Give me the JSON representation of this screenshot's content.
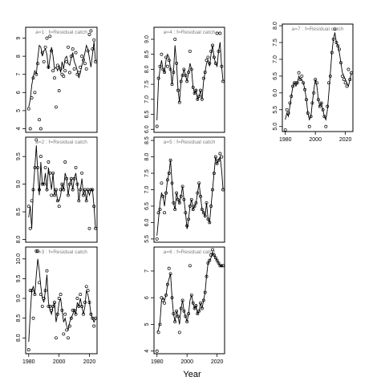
{
  "figure": {
    "xlabel": "Year"
  },
  "chart_data": [
    {
      "type": "line",
      "panel": "a=1",
      "strip": "a=1  :  f=Residual catch",
      "xlim": [
        1978,
        2025
      ],
      "ylim": [
        3.8,
        9.6
      ],
      "yticks": [
        4,
        5,
        6,
        7,
        8,
        9
      ],
      "xticks": [],
      "x": [
        1980,
        1981,
        1982,
        1983,
        1984,
        1985,
        1986,
        1987,
        1988,
        1989,
        1990,
        1991,
        1992,
        1993,
        1994,
        1995,
        1996,
        1997,
        1998,
        1999,
        2000,
        2001,
        2002,
        2003,
        2004,
        2005,
        2006,
        2007,
        2008,
        2009,
        2010,
        2011,
        2012,
        2013,
        2014,
        2015,
        2016,
        2017,
        2018,
        2019,
        2020,
        2021,
        2022,
        2023,
        2024
      ],
      "line": [
        5.2,
        5.6,
        6.4,
        6.9,
        7.2,
        7.0,
        7.9,
        8.6,
        8.5,
        8.0,
        8.3,
        8.4,
        8.1,
        7.3,
        7.9,
        8.5,
        8.0,
        7.3,
        7.4,
        7.2,
        7.5,
        7.1,
        7.7,
        7.3,
        7.9,
        8.0,
        7.6,
        7.5,
        7.9,
        8.2,
        7.7,
        7.5,
        7.2,
        6.8,
        7.1,
        7.5,
        7.8,
        8.2,
        8.6,
        8.4,
        7.9,
        7.4,
        8.1,
        8.8,
        7.7
      ],
      "points": [
        5.1,
        4.0,
        5.7,
        6.8,
        6.0,
        7.0,
        7.6,
        4.5,
        4.0,
        8.2,
        7.7,
        8.5,
        9.0,
        7.4,
        9.1,
        8.3,
        7.2,
        6.8,
        5.2,
        7.5,
        6.1,
        7.3,
        7.0,
        6.9,
        7.2,
        7.7,
        8.5,
        7.1,
        8.0,
        8.4,
        7.3,
        8.2,
        7.0,
        7.1,
        7.4,
        8.0,
        7.8,
        7.6,
        7.3,
        8.3,
        9.2,
        9.4,
        8.4,
        8.9,
        7.7
      ]
    },
    {
      "type": "line",
      "panel": "a=2",
      "strip": "a=2  :  f=Residual catch",
      "xlim": [
        1978,
        2025
      ],
      "ylim": [
        7.95,
        9.85
      ],
      "yticks": [
        8.0,
        8.5,
        9.0,
        9.5
      ],
      "xticks": [],
      "x": [
        1980,
        1981,
        1982,
        1983,
        1984,
        1985,
        1986,
        1987,
        1988,
        1989,
        1990,
        1991,
        1992,
        1993,
        1994,
        1995,
        1996,
        1997,
        1998,
        1999,
        2000,
        2001,
        2002,
        2003,
        2004,
        2005,
        2006,
        2007,
        2008,
        2009,
        2010,
        2011,
        2012,
        2013,
        2014,
        2015,
        2016,
        2017,
        2018,
        2019,
        2020,
        2021,
        2022,
        2023,
        2024
      ],
      "line": [
        8.4,
        8.6,
        8.2,
        8.9,
        9.3,
        9.7,
        9.2,
        8.8,
        9.4,
        9.0,
        9.0,
        9.2,
        8.9,
        9.3,
        9.1,
        8.9,
        9.2,
        8.8,
        8.9,
        8.7,
        8.7,
        8.8,
        9.0,
        8.9,
        9.2,
        9.1,
        8.8,
        9.0,
        9.1,
        8.9,
        9.1,
        9.2,
        9.0,
        8.7,
        8.9,
        9.1,
        8.8,
        8.9,
        8.7,
        8.9,
        8.8,
        8.9,
        8.9,
        8.6,
        8.2
      ],
      "points": [
        8.6,
        8.2,
        8.7,
        8.9,
        9.3,
        9.8,
        9.3,
        8.9,
        9.5,
        9.0,
        9.0,
        9.3,
        8.9,
        9.4,
        9.2,
        8.8,
        9.2,
        8.8,
        8.9,
        8.7,
        8.6,
        8.9,
        9.0,
        8.9,
        9.4,
        9.1,
        8.8,
        9.0,
        9.1,
        8.9,
        9.1,
        9.3,
        9.0,
        8.7,
        8.9,
        9.2,
        8.8,
        8.9,
        8.7,
        8.9,
        8.2,
        8.9,
        8.9,
        8.6,
        8.2
      ]
    },
    {
      "type": "line",
      "panel": "a=3",
      "strip": "a=3  :  f=Residual catch",
      "xlim": [
        1978,
        2025
      ],
      "ylim": [
        7.6,
        10.3
      ],
      "yticks": [
        8.0,
        8.5,
        9.0,
        9.5,
        10.0
      ],
      "xticks": [
        1980,
        2000,
        2020
      ],
      "x": [
        1980,
        1981,
        1982,
        1983,
        1984,
        1985,
        1986,
        1987,
        1988,
        1989,
        1990,
        1991,
        1992,
        1993,
        1994,
        1995,
        1996,
        1997,
        1998,
        1999,
        2000,
        2001,
        2002,
        2003,
        2004,
        2005,
        2006,
        2007,
        2008,
        2009,
        2010,
        2011,
        2012,
        2013,
        2014,
        2015,
        2016,
        2017,
        2018,
        2019,
        2020,
        2021,
        2022,
        2023,
        2024
      ],
      "line": [
        7.9,
        8.6,
        9.2,
        9.3,
        9.1,
        9.6,
        10.0,
        9.7,
        9.3,
        9.0,
        8.9,
        9.2,
        9.6,
        8.9,
        8.7,
        8.6,
        8.8,
        8.9,
        8.4,
        8.6,
        8.9,
        9.0,
        8.7,
        8.4,
        8.5,
        8.3,
        8.2,
        8.4,
        8.5,
        8.6,
        8.7,
        8.6,
        8.9,
        8.8,
        9.0,
        8.8,
        8.6,
        8.8,
        9.2,
        9.1,
        8.9,
        8.6,
        8.5,
        8.4,
        8.5
      ],
      "points": [
        7.7,
        9.2,
        9.2,
        8.5,
        9.1,
        10.2,
        10.2,
        9.4,
        9.1,
        8.8,
        9.0,
        9.2,
        9.7,
        8.8,
        8.8,
        8.7,
        8.8,
        8.9,
        8.0,
        8.6,
        9.0,
        9.1,
        8.7,
        8.1,
        8.6,
        8.2,
        8.0,
        8.3,
        8.5,
        8.7,
        8.7,
        8.6,
        9.0,
        8.8,
        9.1,
        8.8,
        8.6,
        8.9,
        9.3,
        9.2,
        8.9,
        8.6,
        8.5,
        8.3,
        8.5
      ]
    },
    {
      "type": "line",
      "panel": "a=4",
      "strip": "a=4  :  f=Residual catch",
      "xlim": [
        1978,
        2025
      ],
      "ylim": [
        5.9,
        9.4
      ],
      "yticks": [
        6.0,
        6.5,
        7.0,
        7.5,
        8.0,
        8.5,
        9.0
      ],
      "xticks": [],
      "x": [
        1980,
        1981,
        1982,
        1983,
        1984,
        1985,
        1986,
        1987,
        1988,
        1989,
        1990,
        1991,
        1992,
        1993,
        1994,
        1995,
        1996,
        1997,
        1998,
        1999,
        2000,
        2001,
        2002,
        2003,
        2004,
        2005,
        2006,
        2007,
        2008,
        2009,
        2010,
        2011,
        2012,
        2013,
        2014,
        2015,
        2016,
        2017,
        2018,
        2019,
        2020,
        2021,
        2022,
        2023,
        2024
      ],
      "line": [
        6.3,
        7.6,
        8.0,
        8.3,
        8.0,
        7.9,
        8.3,
        8.5,
        8.4,
        8.0,
        7.5,
        7.9,
        8.8,
        8.2,
        7.3,
        6.9,
        7.6,
        7.8,
        8.0,
        7.8,
        7.6,
        7.9,
        8.2,
        8.0,
        7.4,
        7.2,
        7.3,
        7.0,
        7.1,
        7.3,
        7.0,
        7.6,
        7.9,
        8.2,
        8.3,
        8.1,
        8.5,
        8.8,
        8.4,
        8.2,
        8.1,
        8.6,
        8.9,
        8.1,
        7.6
      ],
      "points": [
        6.1,
        7.7,
        8.1,
        8.5,
        8.0,
        7.9,
        8.4,
        8.1,
        8.3,
        8.0,
        7.5,
        7.9,
        9.0,
        8.2,
        7.3,
        6.9,
        7.6,
        7.8,
        8.0,
        7.8,
        7.6,
        7.9,
        8.6,
        8.0,
        7.4,
        7.2,
        7.3,
        7.0,
        7.1,
        7.3,
        7.0,
        7.7,
        7.9,
        8.3,
        8.4,
        8.2,
        8.6,
        8.8,
        8.4,
        8.2,
        9.2,
        8.6,
        9.2,
        8.1,
        7.6
      ]
    },
    {
      "type": "line",
      "panel": "a=5",
      "strip": "a=5  :  f=Residual catch",
      "xlim": [
        1978,
        2025
      ],
      "ylim": [
        5.4,
        8.6
      ],
      "yticks": [
        5.5,
        6.0,
        6.5,
        7.0,
        7.5,
        8.0,
        8.5
      ],
      "xticks": [],
      "x": [
        1980,
        1981,
        1982,
        1983,
        1984,
        1985,
        1986,
        1987,
        1988,
        1989,
        1990,
        1991,
        1992,
        1993,
        1994,
        1995,
        1996,
        1997,
        1998,
        1999,
        2000,
        2001,
        2002,
        2003,
        2004,
        2005,
        2006,
        2007,
        2008,
        2009,
        2010,
        2011,
        2012,
        2013,
        2014,
        2015,
        2016,
        2017,
        2018,
        2019,
        2020,
        2021,
        2022,
        2023,
        2024
      ],
      "line": [
        5.6,
        6.1,
        6.6,
        6.9,
        6.8,
        6.5,
        6.9,
        7.3,
        7.5,
        7.9,
        7.2,
        6.6,
        6.4,
        6.9,
        6.7,
        6.6,
        6.8,
        7.1,
        6.7,
        6.3,
        5.8,
        6.1,
        6.5,
        6.7,
        6.4,
        6.5,
        6.6,
        6.9,
        7.2,
        6.8,
        6.4,
        6.3,
        6.2,
        6.6,
        6.1,
        6.0,
        6.5,
        7.0,
        7.5,
        8.0,
        7.8,
        7.9,
        8.0,
        7.6,
        7.0
      ],
      "points": [
        5.5,
        6.3,
        6.4,
        7.2,
        6.8,
        6.3,
        6.9,
        7.3,
        7.5,
        7.9,
        7.2,
        6.6,
        6.4,
        6.9,
        6.7,
        6.6,
        6.8,
        7.1,
        6.7,
        6.3,
        5.9,
        6.1,
        6.5,
        6.7,
        6.4,
        6.5,
        6.6,
        6.9,
        7.2,
        6.8,
        6.4,
        6.3,
        6.2,
        6.6,
        6.1,
        6.0,
        6.5,
        7.0,
        7.5,
        8.0,
        7.8,
        7.9,
        8.1,
        8.0,
        7.0
      ]
    },
    {
      "type": "line",
      "panel": "a=6",
      "strip": "a=6  :  f=Residual catch",
      "xlim": [
        1978,
        2025
      ],
      "ylim": [
        3.9,
        7.9
      ],
      "yticks": [
        4,
        5,
        6,
        7
      ],
      "xticks": [
        1980,
        2000,
        2020
      ],
      "x": [
        1980,
        1981,
        1982,
        1983,
        1984,
        1985,
        1986,
        1987,
        1988,
        1989,
        1990,
        1991,
        1992,
        1993,
        1994,
        1995,
        1996,
        1997,
        1998,
        1999,
        2000,
        2001,
        2002,
        2003,
        2004,
        2005,
        2006,
        2007,
        2008,
        2009,
        2010,
        2011,
        2012,
        2013,
        2014,
        2015,
        2016,
        2017,
        2018,
        2019,
        2020,
        2021,
        2022,
        2023,
        2024
      ],
      "line": [
        4.7,
        4.8,
        5.1,
        5.9,
        6.0,
        5.9,
        6.1,
        6.5,
        6.7,
        6.9,
        6.0,
        5.4,
        5.1,
        5.5,
        5.3,
        5.0,
        5.6,
        5.9,
        5.5,
        5.3,
        5.1,
        5.4,
        5.9,
        6.1,
        5.8,
        5.6,
        5.7,
        5.4,
        5.5,
        5.8,
        5.6,
        5.9,
        6.2,
        6.8,
        7.3,
        7.4,
        7.5,
        7.7,
        7.6,
        7.5,
        7.4,
        7.3,
        7.2,
        7.2,
        7.2
      ],
      "points": [
        4.0,
        4.7,
        5.0,
        6.0,
        5.9,
        5.8,
        6.1,
        6.5,
        7.1,
        6.9,
        6.0,
        5.4,
        5.1,
        5.5,
        5.3,
        4.7,
        5.6,
        5.9,
        5.5,
        5.3,
        5.1,
        5.4,
        7.2,
        6.1,
        5.8,
        5.6,
        5.7,
        5.4,
        5.5,
        5.8,
        5.6,
        5.9,
        6.2,
        6.8,
        7.3,
        7.4,
        7.6,
        7.8,
        7.6,
        7.5,
        7.4,
        7.3,
        7.2,
        7.2,
        7.2
      ]
    },
    {
      "type": "line",
      "panel": "a=7",
      "strip": "a=7  :  f=Residual catch",
      "xlim": [
        1978,
        2025
      ],
      "ylim": [
        4.85,
        8.05
      ],
      "yticks": [
        5.0,
        5.5,
        6.0,
        6.5,
        7.0,
        7.5,
        8.0
      ],
      "xticks": [
        1980,
        2000,
        2020
      ],
      "x": [
        1980,
        1981,
        1982,
        1983,
        1984,
        1985,
        1986,
        1987,
        1988,
        1989,
        1990,
        1991,
        1992,
        1993,
        1994,
        1995,
        1996,
        1997,
        1998,
        1999,
        2000,
        2001,
        2002,
        2003,
        2004,
        2005,
        2006,
        2007,
        2008,
        2009,
        2010,
        2011,
        2012,
        2013,
        2014,
        2015,
        2016,
        2017,
        2018,
        2019,
        2020,
        2021,
        2022,
        2023,
        2024
      ],
      "line": [
        5.2,
        5.4,
        5.3,
        5.6,
        5.9,
        6.2,
        6.3,
        6.2,
        6.3,
        6.5,
        6.4,
        6.4,
        6.3,
        6.1,
        5.8,
        5.4,
        5.2,
        5.3,
        5.7,
        6.1,
        6.4,
        6.2,
        5.8,
        5.6,
        5.7,
        5.5,
        5.3,
        5.2,
        5.5,
        6.0,
        6.6,
        7.2,
        7.6,
        7.8,
        7.5,
        7.4,
        7.2,
        6.9,
        6.6,
        6.5,
        6.4,
        6.3,
        6.2,
        6.4,
        6.6
      ],
      "points": [
        4.9,
        5.5,
        5.4,
        5.7,
        5.9,
        6.2,
        6.3,
        6.3,
        6.3,
        6.6,
        6.4,
        6.5,
        6.3,
        6.1,
        5.8,
        5.4,
        5.0,
        5.3,
        5.7,
        6.0,
        6.4,
        6.3,
        5.8,
        5.6,
        5.7,
        5.5,
        5.3,
        5.0,
        5.6,
        6.3,
        6.5,
        7.2,
        7.6,
        7.9,
        7.5,
        7.4,
        7.3,
        6.9,
        6.5,
        6.4,
        6.3,
        6.2,
        6.7,
        6.4,
        6.6
      ]
    }
  ]
}
